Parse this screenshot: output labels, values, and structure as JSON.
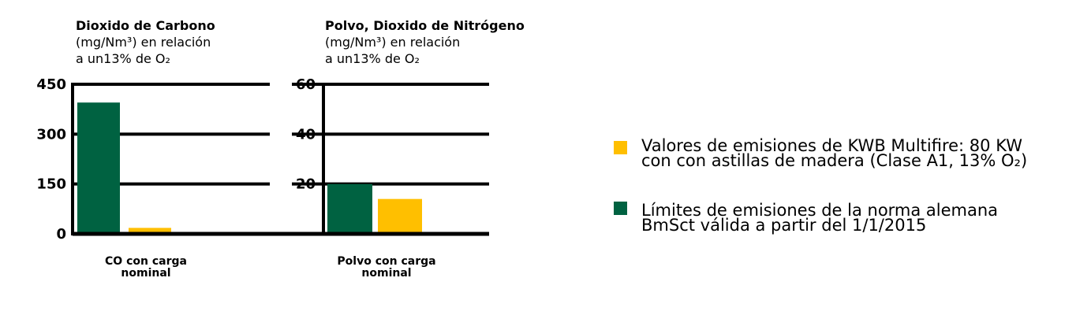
{
  "colors": {
    "green": "#006241",
    "yellow": "#ffbf00",
    "axis": "#000000"
  },
  "chart_data": [
    {
      "type": "bar",
      "title_lines": [
        "Dioxido de Carbono",
        "(mg/Nm³) en relación",
        "a un13% de O₂"
      ],
      "categories": [
        "CO con carga nominal"
      ],
      "category_lines": [
        "CO con carga",
        "nominal"
      ],
      "series": [
        {
          "name": "Límites de emisiones de la norma alemana BmSct válida a partir del 1/1/2015",
          "values": [
            395
          ]
        },
        {
          "name": "Valores de emisiones de KWB Multifire: 80 KW con con astillas de madera (Clase A1, 13% O₂)",
          "values": [
            18
          ]
        }
      ],
      "yticks": [
        "0",
        "150",
        "300",
        "450"
      ],
      "ylim": [
        0,
        450
      ],
      "grid": true
    },
    {
      "type": "bar",
      "title_lines": [
        "Polvo, Dioxido de Nitrógeno",
        "(mg/Nm³) en relación",
        "a un13% de O₂"
      ],
      "categories": [
        "Polvo con carga nominal"
      ],
      "category_lines": [
        "Polvo con carga",
        "nominal"
      ],
      "series": [
        {
          "name": "Límites de emisiones de la norma alemana BmSct válida a partir del 1/1/2015",
          "values": [
            20
          ]
        },
        {
          "name": "Valores de emisiones de KWB Multifire: 80 KW con con astillas de madera (Clase A1, 13% O₂)",
          "values": [
            14
          ]
        }
      ],
      "yticks": [
        "20",
        "40",
        "60"
      ],
      "ylim": [
        0,
        60
      ],
      "grid": true
    }
  ],
  "legend": {
    "placement": "right",
    "items": [
      {
        "color_key": "yellow",
        "lines": [
          "Valores de emisiones de KWB Multifire: 80 KW",
          "con con astillas de madera (Clase A1, 13% O₂)"
        ]
      },
      {
        "color_key": "green",
        "lines": [
          "Límites de emisiones de la norma alemana",
          "BmSct válida a partir del 1/1/2015"
        ]
      }
    ]
  }
}
